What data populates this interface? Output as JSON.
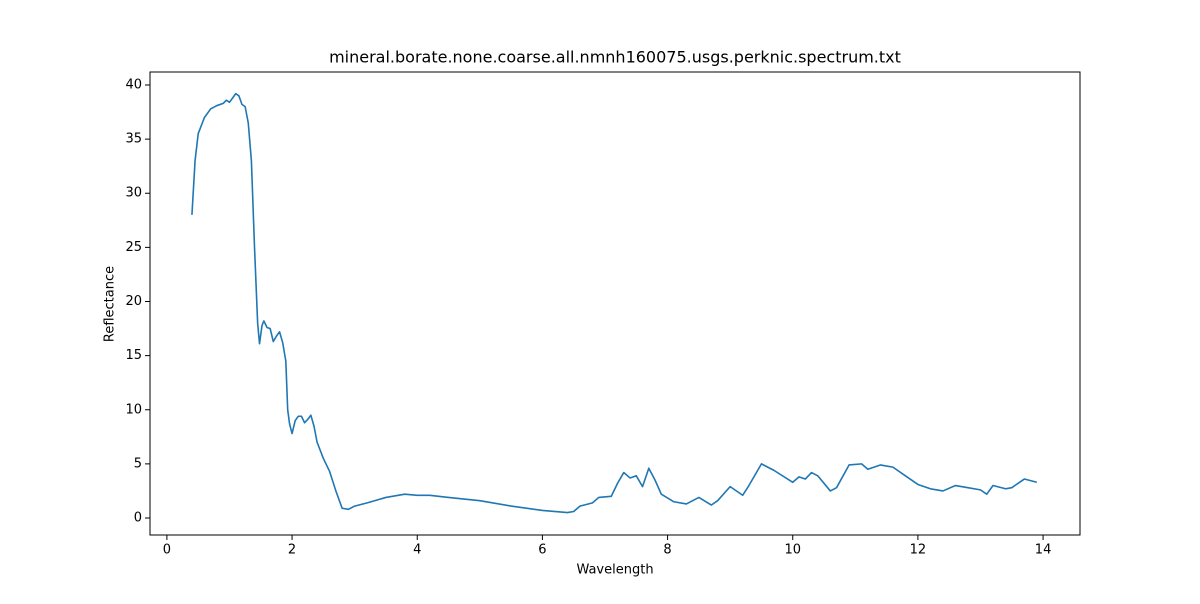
{
  "chart_data": {
    "type": "line",
    "title": "mineral.borate.none.coarse.all.nmnh160075.usgs.perknic.spectrum.txt",
    "xlabel": "Wavelength",
    "ylabel": "Reflectance",
    "xlim": [
      -0.27,
      14.59
    ],
    "ylim": [
      -1.57,
      41.2
    ],
    "xticks": [
      0,
      2,
      4,
      6,
      8,
      10,
      12,
      14
    ],
    "yticks": [
      0,
      5,
      10,
      15,
      20,
      25,
      30,
      35,
      40
    ],
    "series": [
      {
        "color": "#1f77b4",
        "x": [
          0.4,
          0.45,
          0.5,
          0.6,
          0.7,
          0.8,
          0.9,
          0.95,
          1.0,
          1.05,
          1.1,
          1.15,
          1.2,
          1.25,
          1.3,
          1.35,
          1.4,
          1.45,
          1.48,
          1.52,
          1.55,
          1.6,
          1.65,
          1.7,
          1.75,
          1.8,
          1.85,
          1.9,
          1.93,
          1.96,
          2.0,
          2.05,
          2.1,
          2.15,
          2.2,
          2.25,
          2.3,
          2.35,
          2.4,
          2.5,
          2.6,
          2.7,
          2.8,
          2.9,
          3.0,
          3.2,
          3.5,
          3.8,
          4.0,
          4.2,
          4.5,
          5.0,
          5.5,
          6.0,
          6.4,
          6.5,
          6.6,
          6.8,
          6.9,
          7.1,
          7.2,
          7.3,
          7.4,
          7.5,
          7.6,
          7.7,
          7.8,
          7.9,
          8.1,
          8.3,
          8.5,
          8.7,
          8.8,
          9.0,
          9.2,
          9.3,
          9.5,
          9.7,
          10.0,
          10.1,
          10.2,
          10.3,
          10.4,
          10.6,
          10.7,
          10.9,
          11.1,
          11.2,
          11.4,
          11.6,
          11.8,
          12.0,
          12.2,
          12.4,
          12.6,
          12.8,
          13.0,
          13.1,
          13.2,
          13.4,
          13.5,
          13.7,
          13.9
        ],
        "values": [
          28,
          33,
          35.5,
          37,
          37.8,
          38.1,
          38.3,
          38.6,
          38.4,
          38.8,
          39.2,
          39.0,
          38.2,
          38,
          36.5,
          33,
          25,
          18,
          16.1,
          17.8,
          18.2,
          17.6,
          17.5,
          16.3,
          16.8,
          17.2,
          16.2,
          14.5,
          10,
          8.7,
          7.8,
          9,
          9.4,
          9.4,
          8.8,
          9.1,
          9.5,
          8.5,
          7,
          5.5,
          4.3,
          2.5,
          0.9,
          0.8,
          1.1,
          1.4,
          1.9,
          2.2,
          2.1,
          2.1,
          1.9,
          1.6,
          1.1,
          0.7,
          0.5,
          0.6,
          1.1,
          1.4,
          1.9,
          2.0,
          3.2,
          4.2,
          3.7,
          3.9,
          2.9,
          4.6,
          3.5,
          2.2,
          1.5,
          1.3,
          1.9,
          1.2,
          1.6,
          2.9,
          2.1,
          3.0,
          5.0,
          4.4,
          3.3,
          3.8,
          3.6,
          4.2,
          3.9,
          2.5,
          2.8,
          4.9,
          5.0,
          4.5,
          4.9,
          4.7,
          3.9,
          3.1,
          2.7,
          2.5,
          3.0,
          2.8,
          2.6,
          2.2,
          3.0,
          2.7,
          2.8,
          3.6,
          3.3
        ]
      }
    ]
  }
}
